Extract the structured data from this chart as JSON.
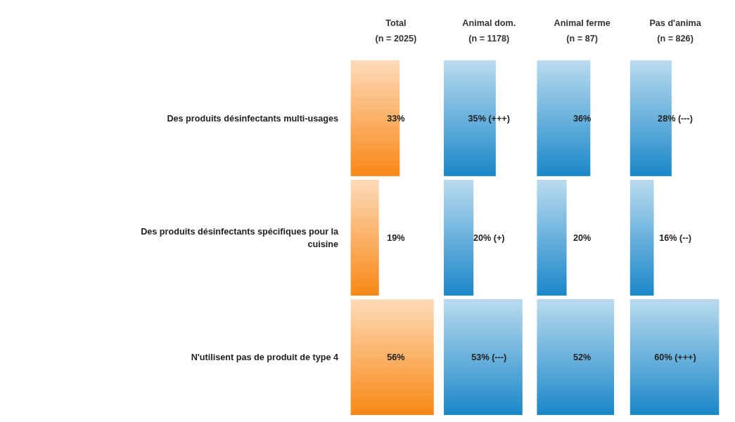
{
  "chart_data": [
    {
      "type": "bar",
      "orientation": "horizontal",
      "title": "Total",
      "subtitle": "(n = 2025)",
      "categories": [
        "Des produits désinfectants multi-usages",
        "Des produits désinfectants spécifiques pour la cuisine",
        "N'utilisent pas de produit de type 4"
      ],
      "values": [
        33,
        19,
        56
      ],
      "value_labels": [
        "33%",
        "19%",
        "56%"
      ],
      "color": "#f98716",
      "tick_labels": "y"
    },
    {
      "type": "bar",
      "orientation": "horizontal",
      "title": "Animal dom.",
      "subtitle": "(n = 1178)",
      "values": [
        35,
        20,
        53
      ],
      "value_labels": [
        "35% (+++)",
        "20% (+)",
        "53% (---)"
      ],
      "color": "#1a87c9",
      "tick_labels": false
    },
    {
      "type": "bar",
      "orientation": "horizontal",
      "title": "Animal ferme",
      "subtitle": "(n = 87)",
      "values": [
        36,
        20,
        52
      ],
      "value_labels": [
        "36%",
        "20%",
        "52%"
      ],
      "color": "#1a87c9",
      "tick_labels": false
    },
    {
      "type": "bar",
      "orientation": "horizontal",
      "title": "Pas d'anima",
      "subtitle": "(n = 826)",
      "values": [
        28,
        16,
        60
      ],
      "value_labels": [
        "28% (---)",
        "16% (--)",
        "60% (+++)"
      ],
      "color": "#1a87c9",
      "tick_labels": false
    }
  ]
}
